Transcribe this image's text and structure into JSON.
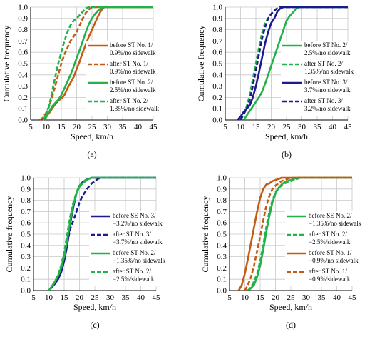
{
  "colors": {
    "orange": "#c55a11",
    "green": "#21b24b",
    "navy": "#1b1b8f",
    "grid": "#c8c8c8",
    "axis": "#000000"
  },
  "chart_data": [
    {
      "type": "line",
      "caption": "(a)",
      "xlabel": "Speed, km/h",
      "ylabel": "Cumulative frequency",
      "xlim": [
        5,
        45
      ],
      "ylim": [
        0,
        1
      ],
      "xticks": [
        "5",
        "10",
        "15",
        "20",
        "25",
        "30",
        "35",
        "40",
        "45"
      ],
      "yticks": [
        "0.0",
        "0.1",
        "0.2",
        "0.3",
        "0.4",
        "0.5",
        "0.6",
        "0.7",
        "0.8",
        "0.9",
        "1.0"
      ],
      "grid": true,
      "legend_position": "right",
      "series": [
        {
          "name": [
            "before ST No. 1/",
            "0.9%/no sidewalk"
          ],
          "color": "orange",
          "dashed": false,
          "x": [
            9,
            10,
            11,
            12,
            13,
            14,
            15,
            16,
            17,
            18,
            19,
            20,
            21,
            22,
            23,
            24,
            25,
            26,
            27,
            28,
            29,
            45
          ],
          "y": [
            0,
            0.03,
            0.06,
            0.1,
            0.14,
            0.17,
            0.19,
            0.22,
            0.28,
            0.33,
            0.38,
            0.45,
            0.52,
            0.6,
            0.67,
            0.74,
            0.8,
            0.86,
            0.92,
            0.97,
            1,
            1
          ]
        },
        {
          "name": [
            "after ST No. 1/",
            "0.9%/no sidewalk"
          ],
          "color": "orange",
          "dashed": true,
          "x": [
            8,
            9,
            10,
            11,
            12,
            13,
            14,
            15,
            16,
            17,
            18,
            19,
            20,
            21,
            22,
            23,
            24,
            25,
            26,
            27,
            45
          ],
          "y": [
            0,
            0.02,
            0.06,
            0.12,
            0.2,
            0.3,
            0.4,
            0.5,
            0.58,
            0.64,
            0.7,
            0.74,
            0.78,
            0.84,
            0.9,
            0.95,
            0.98,
            1,
            1,
            1,
            1
          ]
        },
        {
          "name": [
            "before ST No. 2/",
            "2.5%/no sidewalk"
          ],
          "color": "green",
          "dashed": false,
          "x": [
            9,
            10,
            11,
            12,
            13,
            14,
            15,
            16,
            17,
            18,
            19,
            20,
            21,
            22,
            23,
            24,
            25,
            26,
            27,
            28,
            29,
            45
          ],
          "y": [
            0,
            0.02,
            0.07,
            0.12,
            0.15,
            0.18,
            0.22,
            0.28,
            0.34,
            0.4,
            0.47,
            0.55,
            0.62,
            0.7,
            0.78,
            0.85,
            0.9,
            0.94,
            0.97,
            0.99,
            1,
            1
          ]
        },
        {
          "name": [
            "after ST No. 2/",
            "1.35%/no sidewalk"
          ],
          "color": "green",
          "dashed": true,
          "x": [
            9,
            10,
            11,
            12,
            13,
            14,
            15,
            16,
            17,
            18,
            19,
            20,
            21,
            22,
            23,
            24,
            45
          ],
          "y": [
            0,
            0.04,
            0.12,
            0.25,
            0.38,
            0.5,
            0.6,
            0.7,
            0.78,
            0.84,
            0.88,
            0.9,
            0.93,
            0.96,
            0.99,
            1,
            1
          ]
        }
      ]
    },
    {
      "type": "line",
      "caption": "(b)",
      "xlabel": "Speed, km/h",
      "ylabel": "Cumulative frequency",
      "xlim": [
        5,
        45
      ],
      "ylim": [
        0,
        1
      ],
      "xticks": [
        "5",
        "10",
        "15",
        "20",
        "25",
        "30",
        "35",
        "40",
        "45"
      ],
      "yticks": [
        "0.0",
        "0.1",
        "0.2",
        "0.3",
        "0.4",
        "0.5",
        "0.6",
        "0.7",
        "0.8",
        "0.9",
        "1.0"
      ],
      "grid": true,
      "legend_position": "right",
      "series": [
        {
          "name": [
            "before ST No. 2/",
            "2.5%/no sidewalk"
          ],
          "color": "green",
          "dashed": false,
          "x": [
            11,
            12,
            13,
            14,
            15,
            16,
            17,
            18,
            19,
            20,
            21,
            22,
            23,
            24,
            25,
            26,
            27,
            28,
            29,
            45
          ],
          "y": [
            0,
            0.04,
            0.08,
            0.12,
            0.16,
            0.2,
            0.25,
            0.32,
            0.4,
            0.48,
            0.56,
            0.64,
            0.72,
            0.8,
            0.88,
            0.92,
            0.95,
            0.98,
            1,
            1
          ]
        },
        {
          "name": [
            "after ST No. 2/",
            "1.35%/no sidewalk"
          ],
          "color": "green",
          "dashed": true,
          "x": [
            10,
            11,
            12,
            13,
            14,
            15,
            16,
            17,
            18,
            19,
            20,
            21,
            22,
            23,
            45
          ],
          "y": [
            0,
            0.05,
            0.12,
            0.22,
            0.36,
            0.5,
            0.64,
            0.77,
            0.86,
            0.9,
            0.94,
            0.97,
            0.99,
            1,
            1
          ]
        },
        {
          "name": [
            "before ST No. 3/",
            "3.7%/no sidewalk"
          ],
          "color": "navy",
          "dashed": false,
          "x": [
            9,
            10,
            11,
            12,
            13,
            14,
            15,
            16,
            17,
            18,
            19,
            20,
            21,
            22,
            23,
            24,
            25,
            45
          ],
          "y": [
            0,
            0.03,
            0.07,
            0.1,
            0.13,
            0.2,
            0.3,
            0.42,
            0.55,
            0.68,
            0.78,
            0.86,
            0.9,
            0.96,
            0.99,
            1,
            1,
            1
          ]
        },
        {
          "name": [
            "after ST No. 3/",
            "3.2%/no sidewalk"
          ],
          "color": "navy",
          "dashed": true,
          "x": [
            10,
            11,
            12,
            13,
            14,
            15,
            16,
            17,
            18,
            19,
            20,
            21,
            22,
            23,
            24,
            45
          ],
          "y": [
            0,
            0.05,
            0.1,
            0.18,
            0.3,
            0.44,
            0.58,
            0.72,
            0.82,
            0.9,
            0.94,
            0.97,
            0.99,
            1,
            1,
            1
          ]
        }
      ]
    },
    {
      "type": "line",
      "caption": "(c)",
      "xlabel": "Speed, km/h",
      "ylabel": "Cumulative frequency",
      "xlim": [
        5,
        45
      ],
      "ylim": [
        0,
        1
      ],
      "xticks": [
        "5",
        "10",
        "15",
        "20",
        "25",
        "30",
        "35",
        "40",
        "45"
      ],
      "yticks": [
        "0.0",
        "0.1",
        "0.2",
        "0.3",
        "0.4",
        "0.5",
        "0.6",
        "0.7",
        "0.8",
        "0.9",
        "1.0"
      ],
      "grid": true,
      "legend_position": "right",
      "series": [
        {
          "name": [
            "before SE No. 3/",
            "−3.2%/no sidewalk"
          ],
          "color": "navy",
          "dashed": false,
          "x": [
            10,
            11,
            12,
            13,
            14,
            15,
            16,
            17,
            18,
            19,
            20,
            21,
            22,
            23,
            24,
            25,
            26,
            45
          ],
          "y": [
            0,
            0.03,
            0.06,
            0.1,
            0.16,
            0.26,
            0.4,
            0.6,
            0.74,
            0.86,
            0.93,
            0.96,
            0.98,
            0.99,
            1,
            1,
            1,
            1
          ]
        },
        {
          "name": [
            "after ST No. 3/",
            "−3.7%/no sidewalk"
          ],
          "color": "navy",
          "dashed": true,
          "x": [
            10,
            11,
            12,
            13,
            14,
            15,
            16,
            17,
            18,
            19,
            20,
            21,
            22,
            23,
            24,
            25,
            26,
            27,
            28,
            45
          ],
          "y": [
            0,
            0.03,
            0.07,
            0.12,
            0.2,
            0.3,
            0.42,
            0.55,
            0.62,
            0.7,
            0.78,
            0.84,
            0.88,
            0.92,
            0.95,
            0.97,
            0.99,
            1,
            1,
            1
          ]
        },
        {
          "name": [
            "before ST No. 2/",
            "−1.35%/no sidewalk"
          ],
          "color": "green",
          "dashed": false,
          "x": [
            10,
            11,
            12,
            13,
            14,
            15,
            16,
            17,
            18,
            19,
            20,
            21,
            22,
            23,
            24,
            25,
            45
          ],
          "y": [
            0,
            0.04,
            0.08,
            0.13,
            0.2,
            0.3,
            0.45,
            0.62,
            0.76,
            0.86,
            0.92,
            0.95,
            0.97,
            0.99,
            1,
            1,
            1
          ]
        },
        {
          "name": [
            "after ST No. 2/",
            "−2.5%/sidewalk"
          ],
          "color": "green",
          "dashed": true,
          "x": [
            10,
            11,
            12,
            13,
            14,
            15,
            16,
            17,
            18,
            19,
            20,
            21,
            22,
            23,
            24,
            25,
            45
          ],
          "y": [
            0,
            0.03,
            0.08,
            0.14,
            0.22,
            0.34,
            0.5,
            0.66,
            0.78,
            0.87,
            0.93,
            0.96,
            0.98,
            0.99,
            1,
            1,
            1
          ]
        }
      ]
    },
    {
      "type": "line",
      "caption": "(d)",
      "xlabel": "Speed, km/h",
      "ylabel": "Cumulative frequency",
      "xlim": [
        5,
        45
      ],
      "ylim": [
        0,
        1
      ],
      "xticks": [
        "5",
        "10",
        "15",
        "20",
        "25",
        "30",
        "35",
        "40",
        "45"
      ],
      "yticks": [
        "0.0",
        "0.1",
        "0.2",
        "0.3",
        "0.4",
        "0.5",
        "0.6",
        "0.7",
        "0.8",
        "0.9",
        "1.0"
      ],
      "grid": true,
      "legend_position": "right",
      "series": [
        {
          "name": [
            "before SE No. 2/",
            "−1.35%/no sidewalk"
          ],
          "color": "green",
          "dashed": false,
          "x": [
            11,
            12,
            13,
            14,
            15,
            16,
            17,
            18,
            19,
            20,
            21,
            22,
            23,
            24,
            25,
            26,
            27,
            28,
            29,
            45
          ],
          "y": [
            0,
            0.02,
            0.05,
            0.12,
            0.22,
            0.36,
            0.52,
            0.66,
            0.78,
            0.86,
            0.91,
            0.94,
            0.96,
            0.97,
            0.98,
            0.99,
            1,
            1,
            1,
            1
          ]
        },
        {
          "name": [
            "after ST No. 2/",
            "−2.5%/sidewalk"
          ],
          "color": "green",
          "dashed": true,
          "x": [
            11,
            12,
            13,
            14,
            15,
            16,
            17,
            18,
            19,
            20,
            21,
            22,
            23,
            24,
            25,
            26,
            27,
            28,
            29,
            30,
            45
          ],
          "y": [
            0,
            0.03,
            0.08,
            0.15,
            0.26,
            0.4,
            0.56,
            0.7,
            0.8,
            0.87,
            0.91,
            0.93,
            0.95,
            0.96,
            0.97,
            0.98,
            0.99,
            1,
            1,
            1,
            1
          ]
        },
        {
          "name": [
            "before ST No. 1/",
            "−0.9%/no sidewalk"
          ],
          "color": "orange",
          "dashed": false,
          "x": [
            8,
            9,
            10,
            11,
            12,
            13,
            14,
            15,
            16,
            17,
            18,
            19,
            20,
            21,
            22,
            23,
            45
          ],
          "y": [
            0,
            0.05,
            0.15,
            0.28,
            0.42,
            0.56,
            0.7,
            0.82,
            0.9,
            0.94,
            0.95,
            0.97,
            0.98,
            0.99,
            1,
            1,
            1
          ]
        },
        {
          "name": [
            "after ST No. 1/",
            "−0.9%/sidewalk"
          ],
          "color": "orange",
          "dashed": true,
          "x": [
            10,
            11,
            12,
            13,
            14,
            15,
            16,
            17,
            18,
            19,
            20,
            21,
            22,
            23,
            24,
            25,
            45
          ],
          "y": [
            0,
            0.05,
            0.12,
            0.22,
            0.35,
            0.48,
            0.62,
            0.75,
            0.84,
            0.9,
            0.93,
            0.95,
            0.97,
            0.98,
            0.99,
            1,
            1
          ]
        }
      ]
    }
  ]
}
